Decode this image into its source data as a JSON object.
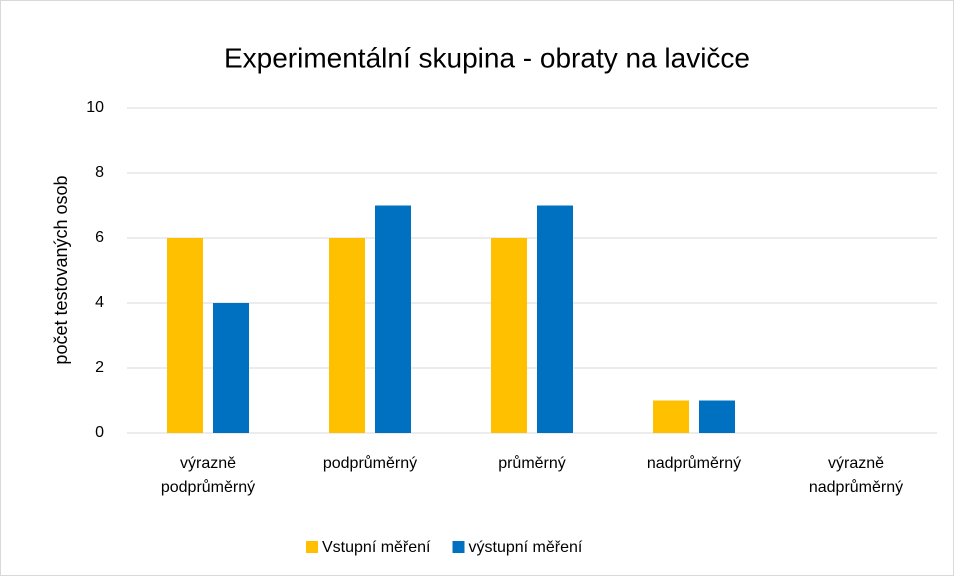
{
  "chart_data": {
    "type": "bar",
    "title": "Experimentální skupina - obraty na lavičce",
    "y_label": "počet testovaných osob",
    "categories": [
      "výrazně podprůměrný",
      "podprůměrný",
      "průměrný",
      "nadprůměrný",
      "výrazně nadprůměrný"
    ],
    "series": [
      {
        "name": "Vstupní měření",
        "color": "#ffc000",
        "values": [
          6,
          6,
          6,
          1,
          0
        ]
      },
      {
        "name": "výstupní měření",
        "color": "#0070c0",
        "values": [
          4,
          7,
          7,
          1,
          0
        ]
      }
    ],
    "ylim": [
      0,
      10
    ],
    "yticks": [
      0,
      2,
      4,
      6,
      8,
      10
    ],
    "grid": true,
    "legend": "bottom"
  }
}
